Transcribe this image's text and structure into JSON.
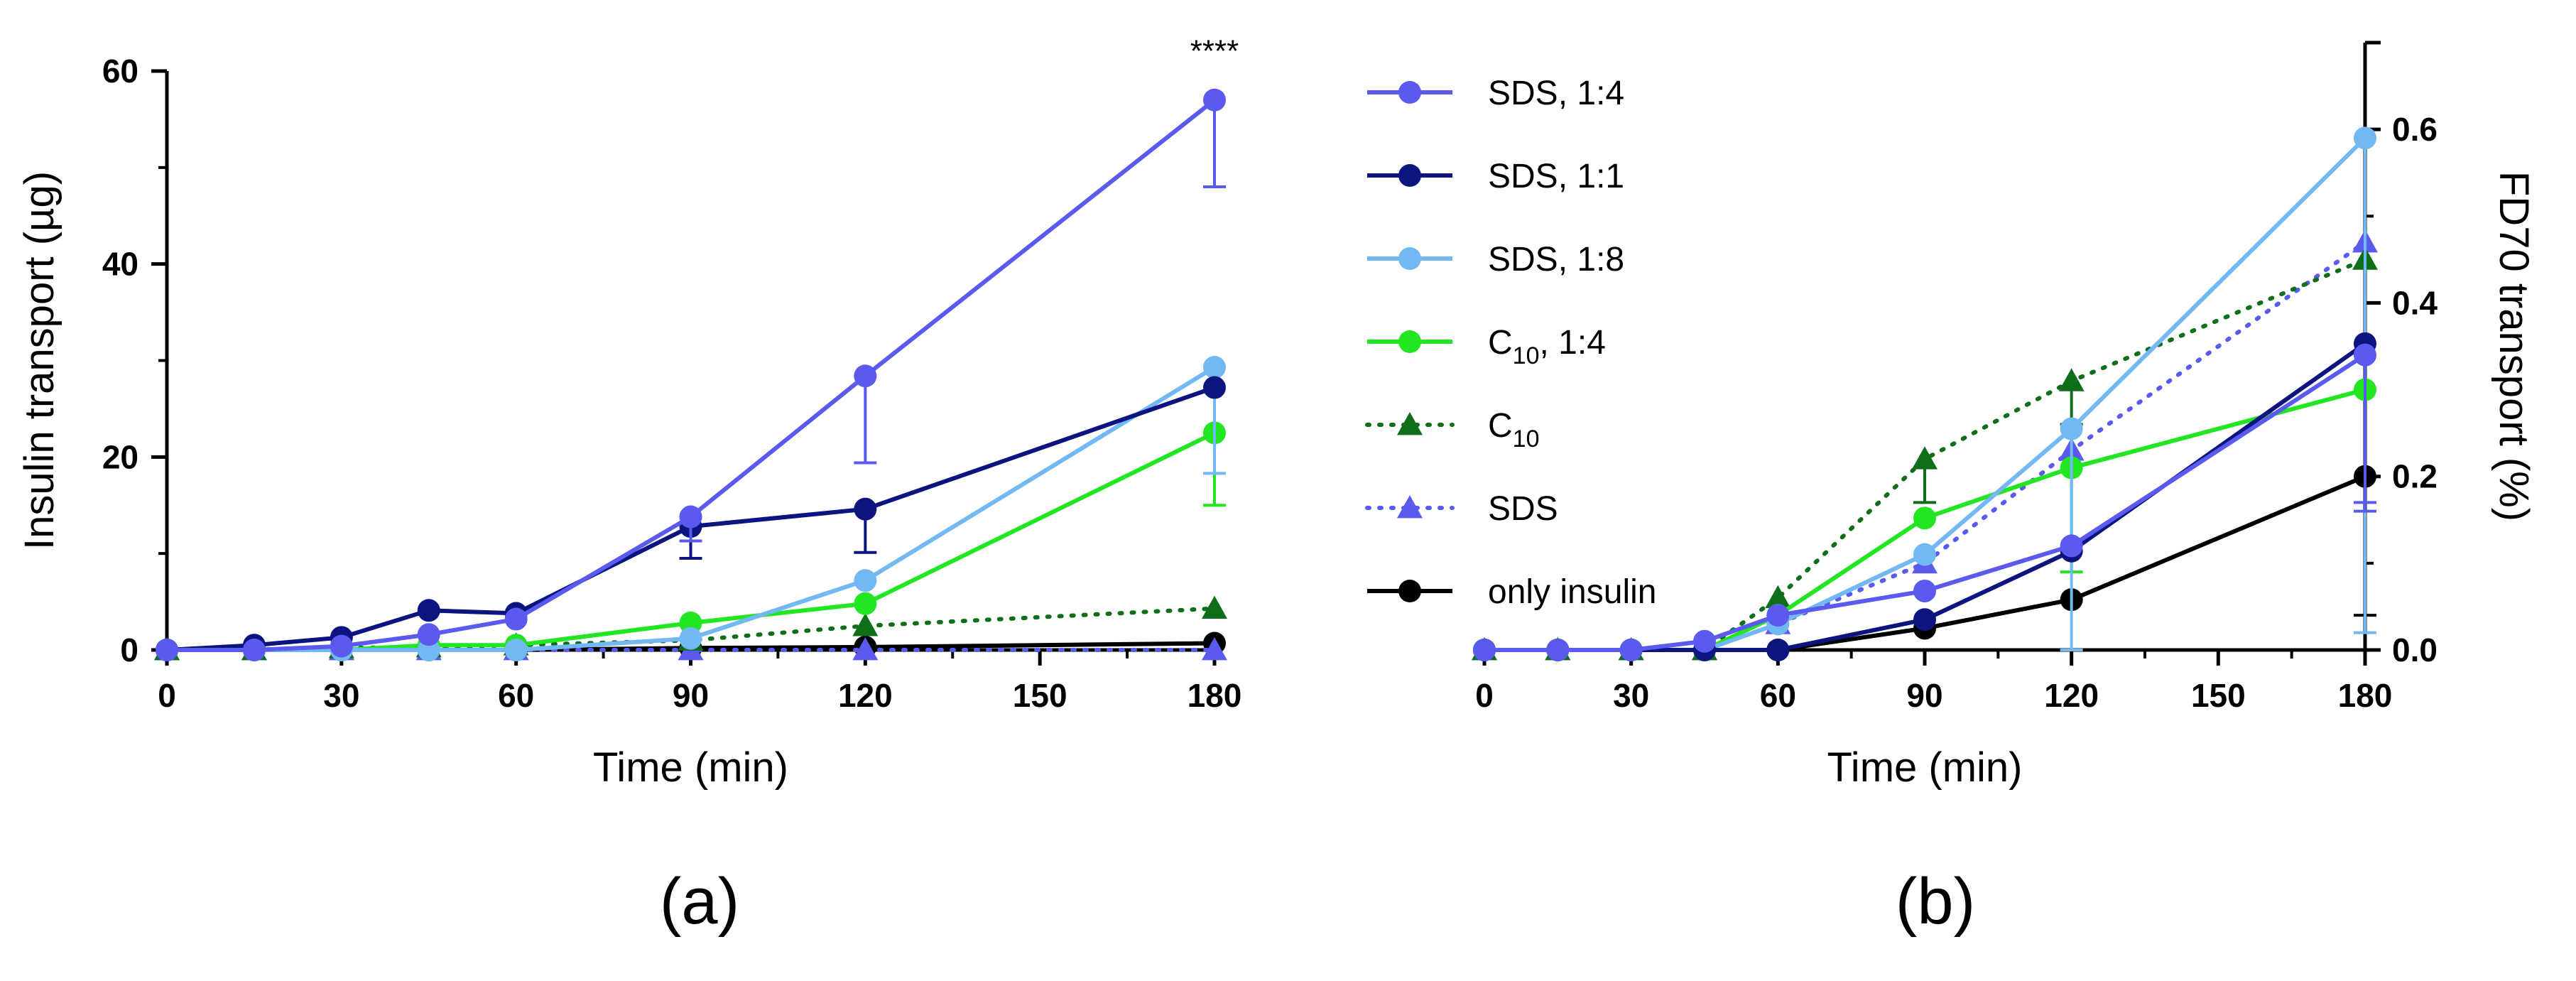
{
  "chart_data": [
    {
      "type": "line",
      "panel_label": "(a)",
      "xlabel": "Time (min)",
      "ylabel": "Insulin transport (µg)",
      "xlim": [
        0,
        180
      ],
      "ylim": [
        0,
        60
      ],
      "xticks": [
        0,
        30,
        60,
        90,
        120,
        150,
        180
      ],
      "yticks": [
        0,
        20,
        40,
        60
      ],
      "annotation": {
        "text": "****",
        "x": 180,
        "y": 61
      },
      "series": [
        {
          "name": "only insulin",
          "color": "#000000",
          "marker": "circle",
          "dash": "solid",
          "x": [
            0,
            15,
            30,
            45,
            60,
            90,
            120,
            180
          ],
          "y": [
            0,
            0,
            0,
            0,
            0,
            0.2,
            0.3,
            0.7
          ],
          "err": [
            0,
            0,
            0,
            0,
            0,
            0,
            0,
            0
          ]
        },
        {
          "name": "SDS",
          "color": "#5a5aee",
          "marker": "triangle",
          "dash": "dotted",
          "x": [
            0,
            15,
            30,
            45,
            60,
            90,
            120,
            180
          ],
          "y": [
            0,
            0,
            0,
            0,
            0,
            0,
            0,
            0
          ],
          "err": [
            0,
            0,
            0,
            0,
            0,
            0,
            0,
            0
          ]
        },
        {
          "name": "C10",
          "color": "#0f6e1a",
          "marker": "triangle",
          "dash": "dotted",
          "x": [
            0,
            15,
            30,
            45,
            60,
            90,
            120,
            180
          ],
          "y": [
            0,
            0,
            0.2,
            0.3,
            0.5,
            1,
            2.5,
            4.3
          ],
          "err": [
            0,
            0,
            0,
            0,
            0,
            0,
            0,
            0
          ]
        },
        {
          "name": "C10, 1:4",
          "color": "#22e622",
          "marker": "circle",
          "dash": "solid",
          "x": [
            0,
            30,
            45,
            60,
            90,
            120,
            180
          ],
          "y": [
            0,
            0,
            0.5,
            0.5,
            2.8,
            4.8,
            22.5
          ],
          "err": [
            0,
            0,
            0,
            0,
            0,
            0,
            7.5
          ]
        },
        {
          "name": "SDS, 1:8",
          "color": "#72b8f2",
          "marker": "circle",
          "dash": "solid",
          "x": [
            0,
            15,
            30,
            45,
            60,
            90,
            120,
            180
          ],
          "y": [
            0,
            0,
            0,
            0,
            0,
            1.2,
            7.2,
            29.3
          ],
          "err": [
            0,
            0,
            0,
            0,
            0,
            0,
            0,
            11
          ]
        },
        {
          "name": "SDS, 1:1",
          "color": "#0c1480",
          "marker": "circle",
          "dash": "solid",
          "x": [
            0,
            15,
            30,
            45,
            60,
            90,
            120,
            180
          ],
          "y": [
            0,
            0.5,
            1.3,
            4.1,
            3.8,
            12.8,
            14.6,
            27.2
          ],
          "err": [
            0,
            0,
            0,
            0,
            0,
            3.3,
            4.5,
            0
          ]
        },
        {
          "name": "SDS, 1:4",
          "color": "#5a5aee",
          "marker": "circle",
          "dash": "solid",
          "x": [
            0,
            15,
            30,
            45,
            60,
            90,
            120,
            180
          ],
          "y": [
            0,
            0,
            0.4,
            1.6,
            3.2,
            13.8,
            28.4,
            57
          ],
          "err": [
            0,
            0,
            0,
            0,
            0,
            2.5,
            9,
            9
          ]
        }
      ]
    },
    {
      "type": "line",
      "panel_label": "(b)",
      "xlabel": "Time (min)",
      "ylabel": "FD70 transport (%)",
      "xlim": [
        0,
        180
      ],
      "ylim": [
        0,
        0.7
      ],
      "xticks": [
        0,
        30,
        60,
        90,
        120,
        150,
        180
      ],
      "yticks": [
        0.0,
        0.2,
        0.4,
        0.6
      ],
      "ytick_labels": [
        "0.0",
        "0.2",
        "0.4",
        "0.6"
      ],
      "series": [
        {
          "name": "only insulin",
          "color": "#000000",
          "marker": "circle",
          "dash": "solid",
          "x": [
            0,
            15,
            30,
            45,
            60,
            90,
            120,
            180
          ],
          "y": [
            0,
            0,
            0,
            0,
            0,
            0.025,
            0.058,
            0.2
          ],
          "err": [
            0,
            0,
            0,
            0,
            0,
            0,
            0,
            0.16
          ]
        },
        {
          "name": "SDS",
          "color": "#5a5aee",
          "marker": "triangle",
          "dash": "dotted",
          "x": [
            0,
            15,
            30,
            45,
            60,
            90,
            120,
            180
          ],
          "y": [
            0,
            0,
            0,
            0,
            0.03,
            0.1,
            0.23,
            0.47
          ],
          "err": [
            0,
            0,
            0,
            0,
            0,
            0,
            0,
            0.3
          ]
        },
        {
          "name": "C10",
          "color": "#0f6e1a",
          "marker": "triangle",
          "dash": "dotted",
          "x": [
            0,
            15,
            30,
            45,
            60,
            90,
            120,
            180
          ],
          "y": [
            0,
            0,
            0,
            0,
            0.06,
            0.22,
            0.31,
            0.45
          ],
          "err": [
            0,
            0,
            0,
            0,
            0,
            0.05,
            0.05,
            0
          ]
        },
        {
          "name": "C10, 1:4",
          "color": "#22e622",
          "marker": "circle",
          "dash": "solid",
          "x": [
            0,
            15,
            30,
            45,
            60,
            90,
            120,
            180
          ],
          "y": [
            0,
            0,
            0,
            0,
            0.04,
            0.152,
            0.21,
            0.3
          ],
          "err": [
            0,
            0,
            0,
            0,
            0,
            0,
            0.12,
            0
          ]
        },
        {
          "name": "SDS, 1:8",
          "color": "#72b8f2",
          "marker": "circle",
          "dash": "solid",
          "x": [
            0,
            15,
            30,
            45,
            60,
            90,
            120,
            180
          ],
          "y": [
            0,
            0,
            0,
            0,
            0.03,
            0.11,
            0.255,
            0.59
          ],
          "err": [
            0,
            0,
            0,
            0,
            0,
            0,
            0.26,
            0.57
          ]
        },
        {
          "name": "SDS, 1:1",
          "color": "#0c1480",
          "marker": "circle",
          "dash": "solid",
          "x": [
            0,
            15,
            30,
            45,
            60,
            90,
            120,
            180
          ],
          "y": [
            0,
            0,
            0,
            0,
            0,
            0.035,
            0.114,
            0.353
          ],
          "err": [
            0,
            0,
            0,
            0,
            0,
            0,
            0,
            0
          ]
        },
        {
          "name": "SDS, 1:4",
          "color": "#5a5aee",
          "marker": "circle",
          "dash": "solid",
          "x": [
            0,
            15,
            30,
            45,
            60,
            90,
            120,
            180
          ],
          "y": [
            0,
            0,
            0,
            0.01,
            0.04,
            0.068,
            0.12,
            0.34
          ],
          "err": [
            0,
            0,
            0,
            0,
            0,
            0,
            0,
            0.18
          ]
        }
      ]
    }
  ],
  "legend": {
    "entries": [
      {
        "label": "SDS, 1:4",
        "color": "#5a5aee",
        "marker": "circle",
        "dash": "solid"
      },
      {
        "label": "SDS, 1:1",
        "color": "#0c1480",
        "marker": "circle",
        "dash": "solid"
      },
      {
        "label": "SDS, 1:8",
        "color": "#72b8f2",
        "marker": "circle",
        "dash": "solid"
      },
      {
        "label": "C10, 1:4",
        "color": "#22e622",
        "marker": "circle",
        "dash": "solid",
        "base": "C",
        "sub": "10",
        "suffix": ", 1:4"
      },
      {
        "label": "C10",
        "color": "#0f6e1a",
        "marker": "triangle",
        "dash": "dotted",
        "base": "C",
        "sub": "10",
        "suffix": ""
      },
      {
        "label": "SDS",
        "color": "#5a5aee",
        "marker": "triangle",
        "dash": "dotted"
      },
      {
        "label": "only insulin",
        "color": "#000000",
        "marker": "circle",
        "dash": "solid"
      }
    ]
  }
}
